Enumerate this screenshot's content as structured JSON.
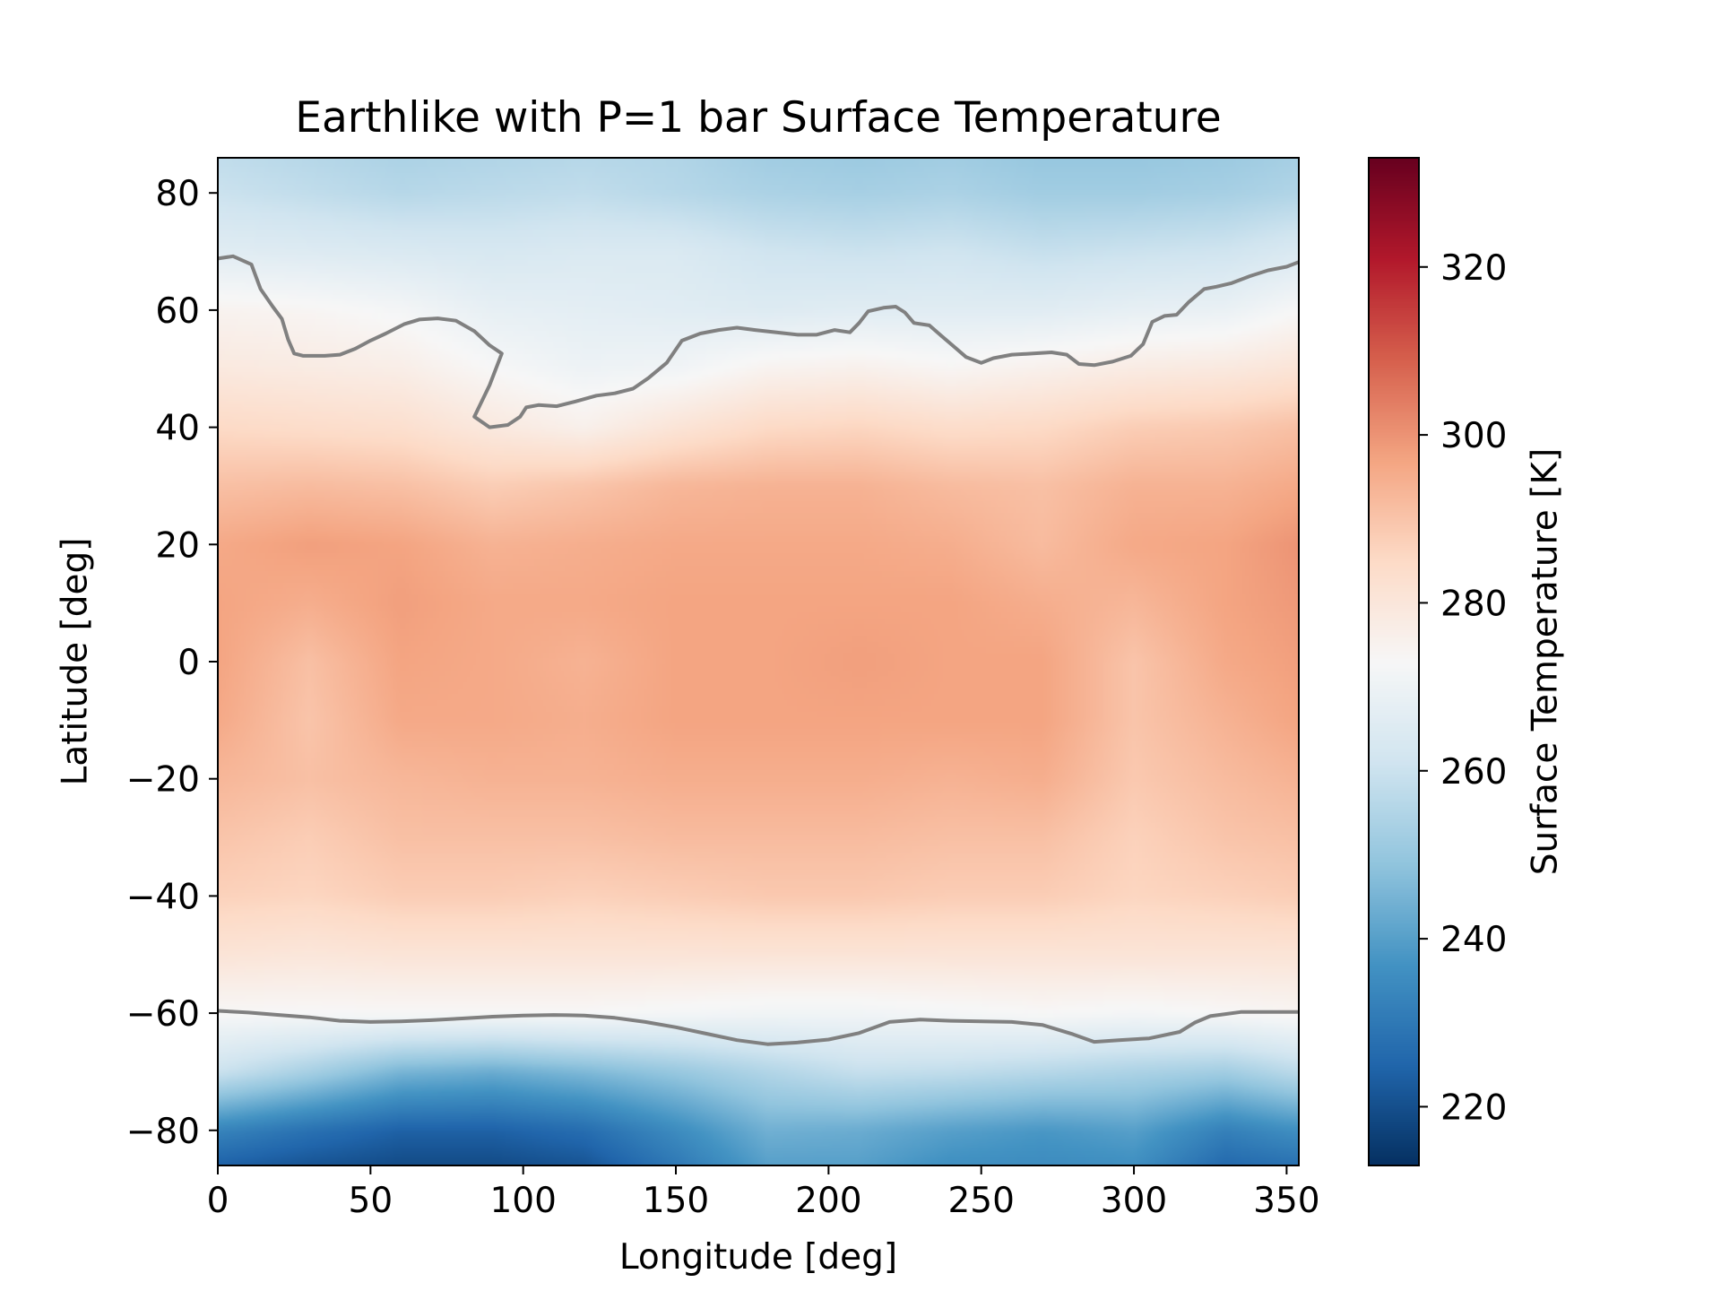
{
  "chart_data": {
    "type": "heatmap",
    "title": "Earthlike with P=1 bar Surface Temperature",
    "xlabel": "Longitude [deg]",
    "ylabel": "Latitude [deg]",
    "xlim": [
      0,
      354
    ],
    "ylim": [
      -86,
      86
    ],
    "x_ticks": [
      {
        "value": 0,
        "label": "0"
      },
      {
        "value": 50,
        "label": "50"
      },
      {
        "value": 100,
        "label": "100"
      },
      {
        "value": 150,
        "label": "150"
      },
      {
        "value": 200,
        "label": "200"
      },
      {
        "value": 250,
        "label": "250"
      },
      {
        "value": 300,
        "label": "300"
      },
      {
        "value": 350,
        "label": "350"
      }
    ],
    "y_ticks": [
      {
        "value": 80,
        "label": "80"
      },
      {
        "value": 60,
        "label": "60"
      },
      {
        "value": 40,
        "label": "40"
      },
      {
        "value": 20,
        "label": "20"
      },
      {
        "value": 0,
        "label": "0"
      },
      {
        "value": -20,
        "label": "−20"
      },
      {
        "value": -40,
        "label": "−40"
      },
      {
        "value": -60,
        "label": "−60"
      },
      {
        "value": -80,
        "label": "−80"
      }
    ],
    "colorbar": {
      "label": "Surface Temperature [K]",
      "range": [
        213,
        333
      ],
      "colormap": "RdBu_r",
      "colormap_stops": [
        "#053061",
        "#2166ac",
        "#4393c3",
        "#92c5de",
        "#d1e5f0",
        "#f7f7f7",
        "#fddbc7",
        "#f4a582",
        "#d6604d",
        "#b2182b",
        "#67001f"
      ],
      "ticks": [
        {
          "value": 220,
          "label": "220"
        },
        {
          "value": 240,
          "label": "240"
        },
        {
          "value": 260,
          "label": "260"
        },
        {
          "value": 280,
          "label": "280"
        },
        {
          "value": 300,
          "label": "300"
        },
        {
          "value": 320,
          "label": "320"
        }
      ]
    },
    "temperature_field": {
      "longitudes": [
        0,
        30,
        60,
        90,
        120,
        150,
        180,
        210,
        240,
        270,
        300,
        330,
        354
      ],
      "latitudes": [
        86,
        80,
        70,
        60,
        50,
        40,
        30,
        20,
        10,
        0,
        -10,
        -20,
        -30,
        -40,
        -50,
        -60,
        -70,
        -80,
        -86
      ],
      "values_K": [
        [
          258,
          256,
          254,
          255,
          256,
          255,
          252,
          251,
          252,
          250,
          250,
          251,
          253
        ],
        [
          260,
          258,
          256,
          257,
          258,
          256,
          254,
          253,
          254,
          252,
          252,
          253,
          255
        ],
        [
          266,
          265,
          264,
          263,
          264,
          264,
          261,
          260,
          261,
          259,
          260,
          261,
          264
        ],
        [
          275,
          274,
          272,
          268,
          267,
          266,
          265,
          266,
          266,
          266,
          268,
          269,
          273
        ],
        [
          279,
          278,
          277,
          273,
          270,
          271,
          275,
          276,
          274,
          276,
          278,
          279,
          281
        ],
        [
          285,
          284,
          283,
          279,
          276,
          281,
          285,
          286,
          284,
          285,
          288,
          289,
          291
        ],
        [
          291,
          292,
          291,
          288,
          290,
          293,
          294,
          294,
          292,
          291,
          294,
          294,
          296
        ],
        [
          296,
          298,
          297,
          294,
          295,
          296,
          296,
          296,
          295,
          292,
          296,
          297,
          300
        ],
        [
          297,
          295,
          298,
          296,
          296,
          297,
          297,
          297,
          297,
          295,
          293,
          297,
          299
        ],
        [
          297,
          291,
          297,
          296,
          294,
          297,
          297,
          298,
          297,
          297,
          290,
          296,
          298
        ],
        [
          296,
          290,
          296,
          296,
          295,
          297,
          297,
          297,
          297,
          297,
          290,
          294,
          297
        ],
        [
          293,
          291,
          293,
          294,
          294,
          295,
          295,
          295,
          294,
          295,
          289,
          292,
          294
        ],
        [
          290,
          288,
          291,
          291,
          291,
          292,
          292,
          292,
          291,
          291,
          287,
          290,
          291
        ],
        [
          287,
          286,
          288,
          288,
          287,
          288,
          289,
          289,
          288,
          288,
          286,
          287,
          288
        ],
        [
          281,
          280,
          281,
          281,
          281,
          281,
          281,
          281,
          281,
          281,
          281,
          281,
          281
        ],
        [
          273,
          273,
          273,
          273,
          273,
          272,
          271,
          271,
          272,
          273,
          272,
          273,
          274
        ],
        [
          260,
          253,
          245,
          243,
          246,
          250,
          255,
          259,
          258,
          256,
          254,
          252,
          257
        ],
        [
          233,
          228,
          224,
          224,
          227,
          235,
          244,
          243,
          240,
          238,
          240,
          232,
          236
        ],
        [
          224,
          221,
          219,
          219,
          221,
          230,
          240,
          240,
          236,
          235,
          236,
          226,
          228
        ]
      ]
    },
    "contours": [
      {
        "level": "273 K",
        "color": "#808080",
        "points": [
          [
            0,
            68.8
          ],
          [
            5,
            69.2
          ],
          [
            11,
            67.8
          ],
          [
            14,
            63.6
          ],
          [
            18,
            60.6
          ],
          [
            21,
            58.5
          ],
          [
            23,
            55
          ],
          [
            25,
            52.6
          ],
          [
            28,
            52.2
          ],
          [
            35,
            52.2
          ],
          [
            40,
            52.4
          ],
          [
            45,
            53.4
          ],
          [
            50,
            54.8
          ],
          [
            55,
            56
          ],
          [
            61,
            57.6
          ],
          [
            66,
            58.4
          ],
          [
            72,
            58.6
          ],
          [
            78,
            58.2
          ],
          [
            84,
            56.4
          ],
          [
            89,
            54
          ],
          [
            93,
            52.6
          ],
          [
            89,
            47.2
          ],
          [
            84,
            41.8
          ],
          [
            89,
            40
          ],
          [
            95,
            40.4
          ],
          [
            99,
            41.8
          ],
          [
            101,
            43.4
          ],
          [
            105,
            43.8
          ],
          [
            111,
            43.6
          ],
          [
            117,
            44.4
          ],
          [
            124,
            45.4
          ],
          [
            130,
            45.8
          ],
          [
            136,
            46.6
          ],
          [
            141,
            48.4
          ],
          [
            147,
            51
          ],
          [
            152,
            54.8
          ],
          [
            158,
            56
          ],
          [
            164,
            56.6
          ],
          [
            170,
            57
          ],
          [
            176,
            56.6
          ],
          [
            183,
            56.2
          ],
          [
            190,
            55.8
          ],
          [
            196,
            55.8
          ],
          [
            202,
            56.6
          ],
          [
            207,
            56.2
          ],
          [
            210,
            57.8
          ],
          [
            213,
            59.8
          ],
          [
            218,
            60.4
          ],
          [
            222,
            60.6
          ],
          [
            225,
            59.6
          ],
          [
            228,
            57.8
          ],
          [
            233,
            57.4
          ],
          [
            237,
            55.6
          ],
          [
            241,
            53.8
          ],
          [
            245,
            52
          ],
          [
            250,
            51
          ],
          [
            254,
            51.8
          ],
          [
            260,
            52.4
          ],
          [
            267,
            52.6
          ],
          [
            273,
            52.8
          ],
          [
            278,
            52.4
          ],
          [
            282,
            50.8
          ],
          [
            287,
            50.6
          ],
          [
            293,
            51.2
          ],
          [
            299,
            52.2
          ],
          [
            303,
            54.2
          ],
          [
            306,
            58
          ],
          [
            310,
            59
          ],
          [
            314,
            59.2
          ],
          [
            318,
            61.4
          ],
          [
            323,
            63.6
          ],
          [
            327,
            64
          ],
          [
            332,
            64.6
          ],
          [
            338,
            65.8
          ],
          [
            344,
            66.8
          ],
          [
            350,
            67.4
          ],
          [
            354,
            68.2
          ]
        ]
      },
      {
        "level": "273 K",
        "color": "#808080",
        "points": [
          [
            0,
            -59.6
          ],
          [
            10,
            -59.9
          ],
          [
            20,
            -60.3
          ],
          [
            30,
            -60.7
          ],
          [
            40,
            -61.3
          ],
          [
            50,
            -61.5
          ],
          [
            60,
            -61.4
          ],
          [
            70,
            -61.2
          ],
          [
            80,
            -60.9
          ],
          [
            90,
            -60.6
          ],
          [
            100,
            -60.4
          ],
          [
            110,
            -60.3
          ],
          [
            120,
            -60.4
          ],
          [
            130,
            -60.8
          ],
          [
            140,
            -61.5
          ],
          [
            150,
            -62.4
          ],
          [
            160,
            -63.5
          ],
          [
            170,
            -64.6
          ],
          [
            180,
            -65.3
          ],
          [
            190,
            -65
          ],
          [
            200,
            -64.5
          ],
          [
            210,
            -63.4
          ],
          [
            220,
            -61.5
          ],
          [
            230,
            -61.1
          ],
          [
            240,
            -61.3
          ],
          [
            250,
            -61.4
          ],
          [
            260,
            -61.5
          ],
          [
            270,
            -62
          ],
          [
            280,
            -63.6
          ],
          [
            287,
            -64.9
          ],
          [
            295,
            -64.6
          ],
          [
            305,
            -64.3
          ],
          [
            315,
            -63.2
          ],
          [
            320,
            -61.6
          ],
          [
            325,
            -60.5
          ],
          [
            335,
            -59.8
          ],
          [
            345,
            -59.8
          ],
          [
            354,
            -59.8
          ]
        ]
      }
    ],
    "grid": false,
    "legend": "none"
  }
}
